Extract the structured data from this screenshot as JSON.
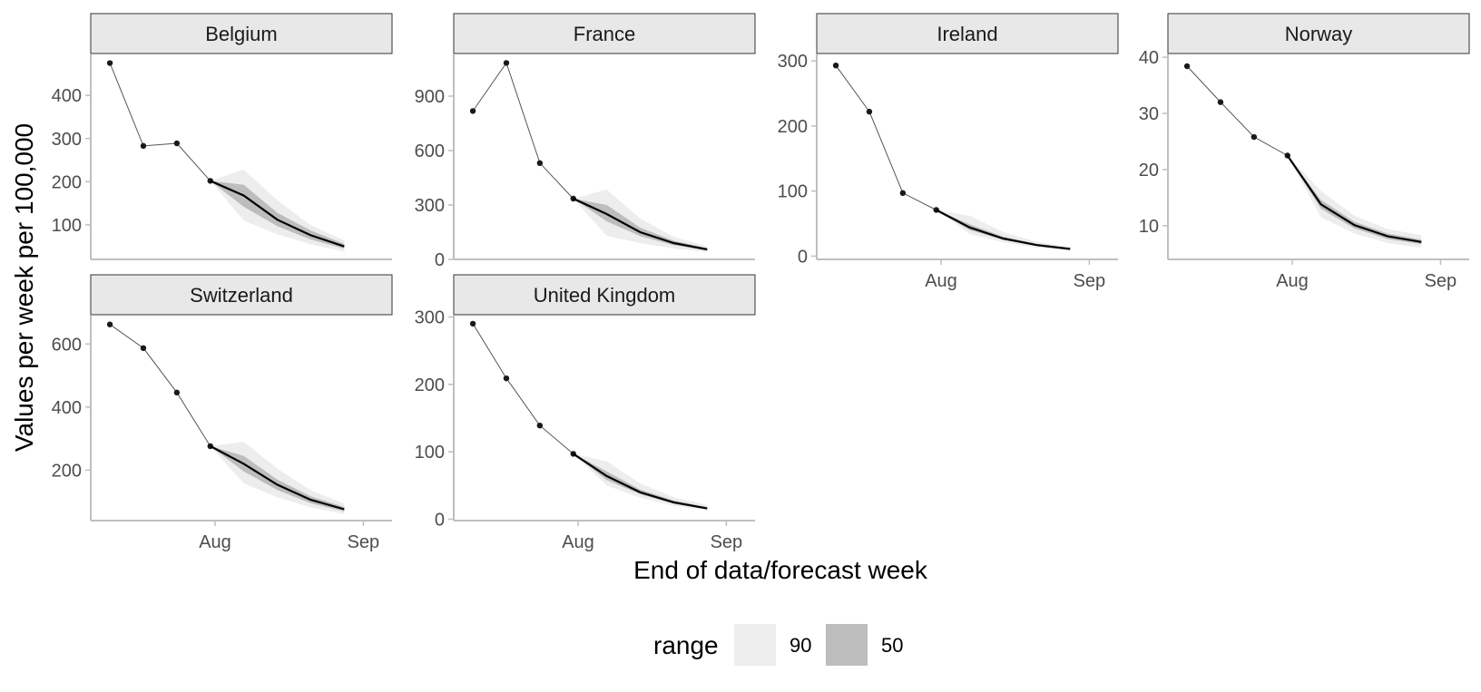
{
  "chart_data": {
    "type": "line",
    "xlabel": "End of data/forecast week",
    "ylabel": "Values per week per 100,000",
    "x_ticks": [
      "Aug",
      "Sep"
    ],
    "x": [
      "2021-07-10",
      "2021-07-17",
      "2021-07-24",
      "2021-07-31",
      "2021-08-07",
      "2021-08-14",
      "2021-08-21",
      "2021-08-28",
      "2021-09-04"
    ],
    "colors": {
      "observed": "#1a1a1a",
      "band90": "#ededed",
      "band50": "#bdbdbd",
      "strip": "#e8e8e8",
      "axis": "#bfbfbf"
    },
    "legend": {
      "title": "range",
      "items": [
        {
          "label": "90",
          "color": "#ededed"
        },
        {
          "label": "50",
          "color": "#bdbdbd"
        }
      ]
    },
    "panels": [
      {
        "name": "Belgium",
        "ylim": [
          20,
          495
        ],
        "yticks": [
          100,
          200,
          300,
          400
        ],
        "observed": [
          475,
          283,
          289,
          202
        ],
        "forecast": [
          202,
          168,
          112,
          76,
          50
        ],
        "lo50": [
          202,
          142,
          97,
          66,
          45
        ],
        "hi50": [
          202,
          193,
          128,
          87,
          56
        ],
        "lo90": [
          202,
          110,
          78,
          55,
          38
        ],
        "hi90": [
          202,
          228,
          157,
          99,
          64
        ]
      },
      {
        "name": "France",
        "ylim": [
          0,
          1130
        ],
        "yticks": [
          0,
          300,
          600,
          900
        ],
        "observed": [
          818,
          1083,
          531,
          335
        ],
        "forecast": [
          335,
          250,
          150,
          90,
          55
        ],
        "lo50": [
          335,
          210,
          128,
          78,
          48
        ],
        "hi50": [
          335,
          300,
          175,
          103,
          62
        ],
        "lo90": [
          335,
          130,
          90,
          60,
          40
        ],
        "hi90": [
          335,
          385,
          225,
          125,
          72
        ]
      },
      {
        "name": "Ireland",
        "ylim": [
          -5,
          310
        ],
        "yticks": [
          0,
          100,
          200,
          300
        ],
        "observed": [
          293,
          222,
          97,
          71
        ],
        "forecast": [
          71,
          44,
          27,
          17,
          11
        ],
        "lo50": [
          71,
          40,
          25,
          16,
          10
        ],
        "hi50": [
          71,
          49,
          30,
          19,
          12
        ],
        "lo90": [
          71,
          34,
          21,
          13,
          9
        ],
        "hi90": [
          71,
          62,
          37,
          22,
          14
        ]
      },
      {
        "name": "Norway",
        "ylim": [
          4,
          40.5
        ],
        "yticks": [
          10,
          20,
          30,
          40
        ],
        "observed": [
          38.4,
          32.0,
          25.8,
          22.5
        ],
        "forecast": [
          22.5,
          13.8,
          10.1,
          8.1,
          7.1
        ],
        "lo50": [
          22.5,
          13.0,
          9.5,
          7.6,
          6.7
        ],
        "hi50": [
          22.5,
          14.6,
          10.7,
          8.6,
          7.5
        ],
        "lo90": [
          22.5,
          11.5,
          8.6,
          6.9,
          6.1
        ],
        "hi90": [
          22.5,
          16.2,
          11.8,
          9.4,
          8.3
        ]
      },
      {
        "name": "Switzerland",
        "ylim": [
          40,
          690
        ],
        "yticks": [
          200,
          400,
          600
        ],
        "observed": [
          662,
          587,
          446,
          276
        ],
        "forecast": [
          276,
          220,
          154,
          106,
          76
        ],
        "lo50": [
          276,
          196,
          137,
          95,
          69
        ],
        "hi50": [
          276,
          245,
          170,
          117,
          83
        ],
        "lo90": [
          276,
          158,
          114,
          82,
          61
        ],
        "hi90": [
          276,
          290,
          205,
          136,
          94
        ]
      },
      {
        "name": "United Kingdom",
        "ylim": [
          -2,
          302
        ],
        "yticks": [
          0,
          100,
          200,
          300
        ],
        "observed": [
          290,
          209,
          139,
          97
        ],
        "forecast": [
          97,
          64,
          40,
          25,
          16
        ],
        "lo50": [
          97,
          58,
          37,
          23,
          15
        ],
        "hi50": [
          97,
          71,
          44,
          28,
          18
        ],
        "lo90": [
          97,
          50,
          32,
          20,
          13
        ],
        "hi90": [
          97,
          86,
          53,
          33,
          21
        ]
      }
    ]
  }
}
